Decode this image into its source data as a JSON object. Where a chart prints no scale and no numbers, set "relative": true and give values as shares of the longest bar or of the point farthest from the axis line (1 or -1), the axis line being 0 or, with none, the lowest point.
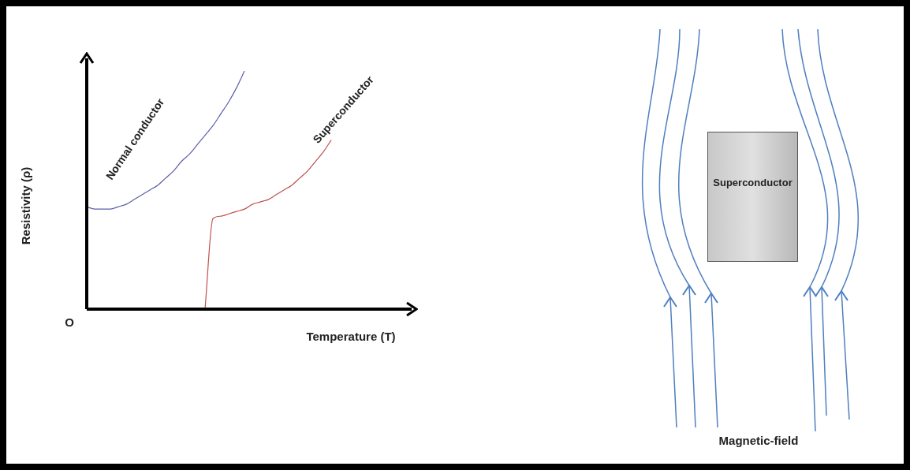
{
  "chart_data": [
    {
      "type": "line",
      "relative": true,
      "marker": "none",
      "xlabel": "Temperature (T)",
      "ylabel": "Resistivity (ρ)",
      "annotations": [
        "O"
      ],
      "categories": [
        null,
        null,
        null,
        null,
        null,
        null,
        null,
        null,
        null,
        null,
        null,
        null,
        null,
        null,
        null,
        null,
        null,
        null,
        null,
        null,
        null,
        null,
        null,
        null,
        null,
        null,
        null,
        null,
        null,
        null,
        null,
        null,
        null,
        null,
        null,
        null,
        null,
        null,
        null,
        null,
        null
      ],
      "series": [
        {
          "name": "Normal conductor",
          "color": "#5b5fa8",
          "values": [
            0.43,
            0.42,
            0.42,
            0.42,
            0.43,
            0.44,
            0.46,
            0.48,
            0.5,
            0.52,
            0.55,
            0.58,
            0.62,
            0.65,
            0.69,
            0.73,
            0.77,
            0.82,
            0.87,
            0.93,
            1,
            null,
            null,
            null,
            null,
            null,
            null,
            null,
            null,
            null,
            null,
            null,
            null,
            null,
            null,
            null,
            null,
            null,
            null,
            null,
            null
          ]
        },
        {
          "name": "Superconductor",
          "color": "#c0504d",
          "values": [
            null,
            null,
            null,
            null,
            null,
            null,
            null,
            null,
            null,
            null,
            null,
            null,
            null,
            null,
            null,
            0,
            0.38,
            0.39,
            0.4,
            0.41,
            0.42,
            0.44,
            0.45,
            0.46,
            0.48,
            0.5,
            0.52,
            0.55,
            0.58,
            0.62,
            0.66,
            0.71,
            null,
            null,
            null,
            null,
            null,
            null,
            null,
            null,
            null
          ]
        }
      ]
    },
    {
      "type": "other",
      "annotations": [
        "Superconductor",
        "Magnetic-field"
      ]
    }
  ]
}
